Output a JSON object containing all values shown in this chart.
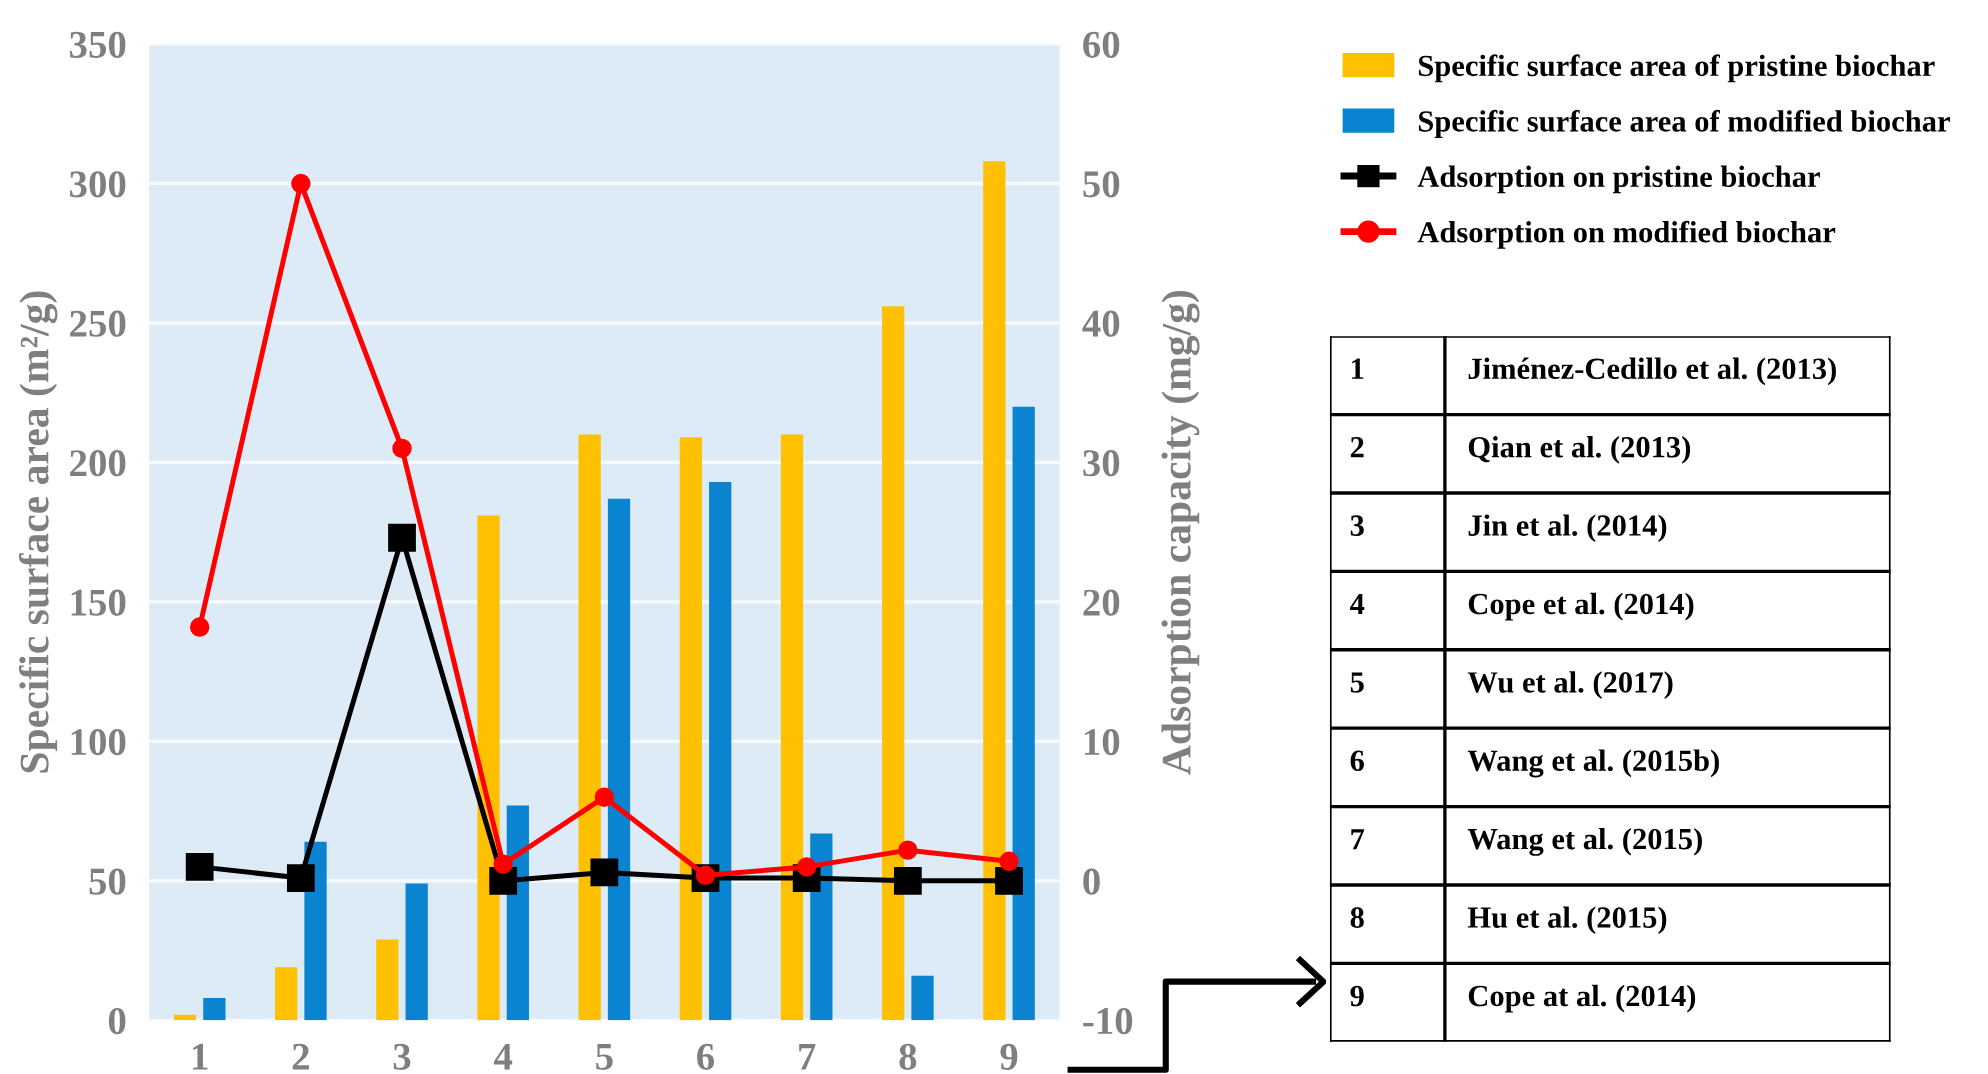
{
  "chart_data": {
    "type": "bar",
    "categories": [
      "1",
      "2",
      "3",
      "4",
      "5",
      "6",
      "7",
      "8",
      "9"
    ],
    "series": [
      {
        "name": "Specific surface area of pristine biochar",
        "color": "#ffc000",
        "values": [
          2,
          19,
          29,
          181,
          210,
          209,
          210,
          256,
          308
        ]
      },
      {
        "name": "Specific surface area of modified biochar",
        "color": "#0a84d0",
        "values": [
          8,
          64,
          49,
          77,
          187,
          193,
          67,
          16,
          220
        ]
      },
      {
        "name": "Adsorption on pristine biochar",
        "type": "line",
        "axis": "y2",
        "marker": "square",
        "color": "#000000",
        "values": [
          1.0,
          0.2,
          24.6,
          0,
          0.6,
          0.2,
          0.2,
          0,
          0
        ]
      },
      {
        "name": "Adsorption on modified biochar",
        "type": "line",
        "axis": "y2",
        "marker": "circle",
        "color": "#ff0000",
        "values": [
          18.2,
          50,
          31,
          1.2,
          6,
          0.4,
          1,
          2.2,
          1.4
        ]
      }
    ],
    "ylabel": "Specific surface area (m²/g)",
    "y2label": "Adsorption capacity (mg/g)",
    "ylim": [
      0,
      350
    ],
    "yticks": [
      0,
      50,
      100,
      150,
      200,
      250,
      300,
      350
    ],
    "y2lim": [
      -10,
      60
    ],
    "y2ticks": [
      -10,
      0,
      10,
      20,
      30,
      40,
      50,
      60
    ],
    "grid": "y",
    "legend": "top right",
    "annotations": [
      "1",
      "Jiménez-Cedillo et al. (2013)",
      "2",
      "Qian et al. (2013)",
      "3",
      "Jin et al. (2014)",
      "4",
      "Cope et al. (2014)",
      "5",
      "Wu et al. (2017)",
      "6",
      "Wang et al. (2015b)",
      "7",
      "Wang et al. (2015)",
      "8",
      "Hu et al. (2015)",
      "9",
      "Cope at al. (2014)"
    ]
  }
}
